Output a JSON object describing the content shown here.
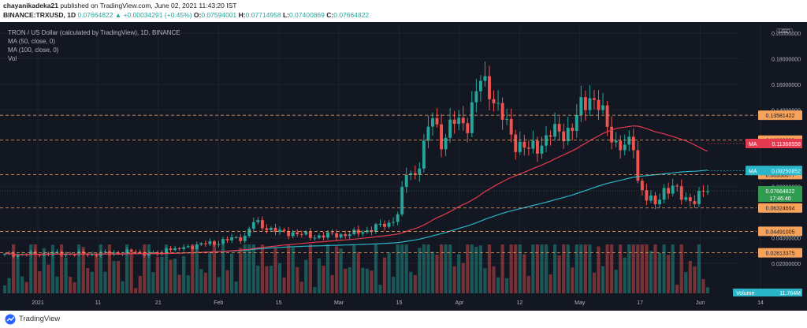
{
  "header": {
    "author": "chayanikadeka21",
    "published": "published on TradingView.com, June 02, 2021 11:43:20 IST",
    "symbol": "BINANCE:TRXUSD, 1D",
    "price": "0.07664822",
    "change": "+0.00034291 (+0.45%)",
    "o_label": "O:",
    "o": "0.07594001",
    "h_label": "H:",
    "h": "0.07714958",
    "l_label": "L:",
    "l": "0.07400869",
    "c_label": "C:",
    "c": "0.07664822"
  },
  "legend": {
    "line1": "TRON / US Dollar (calculated by TradingView), 1D, BINANCE",
    "line2": "MA (50, close, 0)",
    "line3": "MA (100, close, 0)",
    "line4": "Vol"
  },
  "currency": "USD",
  "footer": {
    "brand": "TradingView"
  },
  "colors": {
    "background": "#131722",
    "up": "#26a69a",
    "down": "#ef5350",
    "ma50": "#e53950",
    "ma100": "#2bb5c8",
    "level": "#f7a35c",
    "last_price": "#2f9c4f"
  },
  "chart_data": {
    "type": "candlestick",
    "y_axis_ticks": [
      "0.20000000",
      "0.18000000",
      "0.16000000",
      "0.14000000",
      "0.08000000",
      "0.04000000",
      "0.02000000"
    ],
    "ylim": [
      0.01,
      0.205
    ],
    "x_tick_labels": [
      "2021",
      "11",
      "21",
      "Feb",
      "15",
      "Mar",
      "15",
      "Apr",
      "12",
      "May",
      "17",
      "Jun",
      "14"
    ],
    "levels": [
      0.13581422,
      0.11630689,
      0.08938677,
      0.06324694,
      0.04491005,
      0.02813375
    ],
    "level_labels": [
      "0.13581422",
      "0.11630689",
      "0.08938677",
      "0.06324694",
      "0.04491005",
      "0.02813375"
    ],
    "last_price": 0.07664822,
    "last_price_label": "0.07664822",
    "countdown": "17:46:40",
    "ma50_value": 0.11368558,
    "ma50_label": "MA",
    "ma50_value_label": "0.11368558",
    "ma100_value": 0.09250852,
    "ma100_label": "MA",
    "ma100_value_label": "0.09250852",
    "volume_label": "Volume",
    "volume_value": "11.764M",
    "price_path": [
      [
        0,
        0.0265
      ],
      [
        10,
        0.0275
      ],
      [
        20,
        0.027
      ],
      [
        30,
        0.029
      ],
      [
        33,
        0.0272
      ],
      [
        36,
        0.0275
      ],
      [
        37,
        0.033
      ],
      [
        39,
        0.03
      ],
      [
        42,
        0.033
      ],
      [
        48,
        0.036
      ],
      [
        55,
        0.041
      ],
      [
        57,
        0.052
      ],
      [
        60,
        0.048
      ],
      [
        63,
        0.044
      ],
      [
        66,
        0.044
      ],
      [
        70,
        0.041
      ],
      [
        75,
        0.042
      ],
      [
        80,
        0.043
      ],
      [
        86,
        0.049
      ],
      [
        88,
        0.051
      ],
      [
        90,
        0.059
      ],
      [
        92,
        0.09
      ],
      [
        94,
        0.09
      ],
      [
        96,
        0.111
      ],
      [
        98,
        0.135
      ],
      [
        100,
        0.116
      ],
      [
        103,
        0.13
      ],
      [
        106,
        0.131
      ],
      [
        109,
        0.162
      ],
      [
        111,
        0.158
      ],
      [
        113,
        0.14
      ],
      [
        115,
        0.127
      ],
      [
        117,
        0.115
      ],
      [
        120,
        0.108
      ],
      [
        122,
        0.112
      ],
      [
        125,
        0.121
      ],
      [
        128,
        0.123
      ],
      [
        130,
        0.126
      ],
      [
        132,
        0.141
      ],
      [
        134,
        0.152
      ],
      [
        136,
        0.144
      ],
      [
        138,
        0.125
      ],
      [
        140,
        0.115
      ],
      [
        142,
        0.111
      ],
      [
        144,
        0.112
      ],
      [
        145,
        0.085
      ],
      [
        147,
        0.072
      ],
      [
        149,
        0.065
      ],
      [
        151,
        0.078
      ],
      [
        153,
        0.08
      ],
      [
        155,
        0.071
      ],
      [
        158,
        0.07
      ],
      [
        160,
        0.075
      ],
      [
        161,
        0.0766
      ]
    ]
  }
}
